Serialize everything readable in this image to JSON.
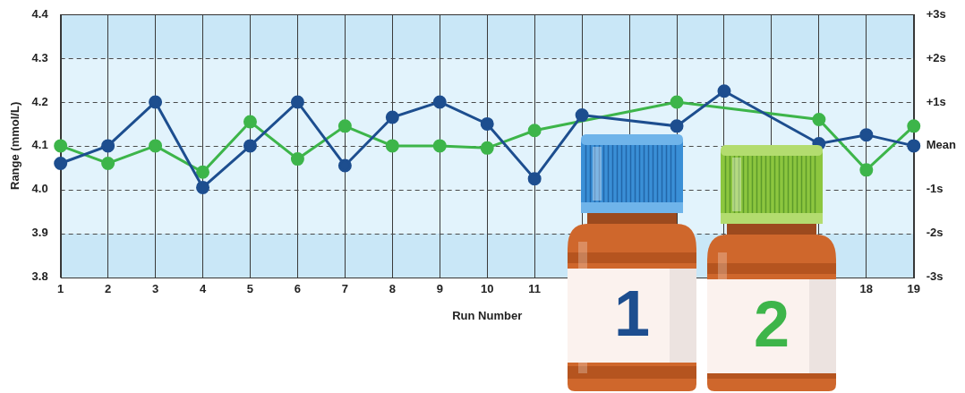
{
  "chart_data": {
    "type": "line",
    "x_label": "Run Number",
    "y_label": "Range (mmol/L)",
    "categories": [
      1,
      2,
      3,
      4,
      5,
      6,
      7,
      8,
      9,
      10,
      11,
      null,
      null,
      null,
      null,
      null,
      null,
      18,
      19
    ],
    "series": [
      {
        "name": "1",
        "color": "#1d4e8f",
        "marker": "circle",
        "values": [
          4.06,
          4.1,
          4.2,
          4.005,
          4.1,
          4.2,
          4.055,
          4.165,
          4.2,
          4.15,
          4.025,
          4.17,
          null,
          4.145,
          4.225,
          null,
          4.105,
          4.125,
          4.1
        ]
      },
      {
        "name": "2",
        "color": "#3db54a",
        "marker": "circle",
        "values": [
          4.1,
          4.06,
          4.1,
          4.04,
          4.155,
          4.07,
          4.145,
          4.1,
          4.1,
          4.095,
          4.135,
          null,
          null,
          4.2,
          null,
          null,
          4.16,
          4.045,
          4.145
        ]
      }
    ],
    "ylim": [
      3.8,
      4.4
    ],
    "yticks": [
      3.8,
      3.9,
      {
        "value": 4,
        "label": "4.0"
      },
      4.1,
      4.2,
      4.3,
      4.4
    ],
    "y2lim": [
      3.8,
      4.4
    ],
    "y2ticks": [
      {
        "value": 3.8,
        "label": "-3s"
      },
      {
        "value": 3.9,
        "label": "-2s"
      },
      {
        "value": 4,
        "label": "-1s"
      },
      {
        "value": 4.1,
        "label": "Mean"
      },
      {
        "value": 4.2,
        "label": "+1s"
      },
      {
        "value": 4.3,
        "label": "+2s"
      },
      {
        "value": 4.4,
        "label": "+3s"
      }
    ],
    "grid": true
  }
}
